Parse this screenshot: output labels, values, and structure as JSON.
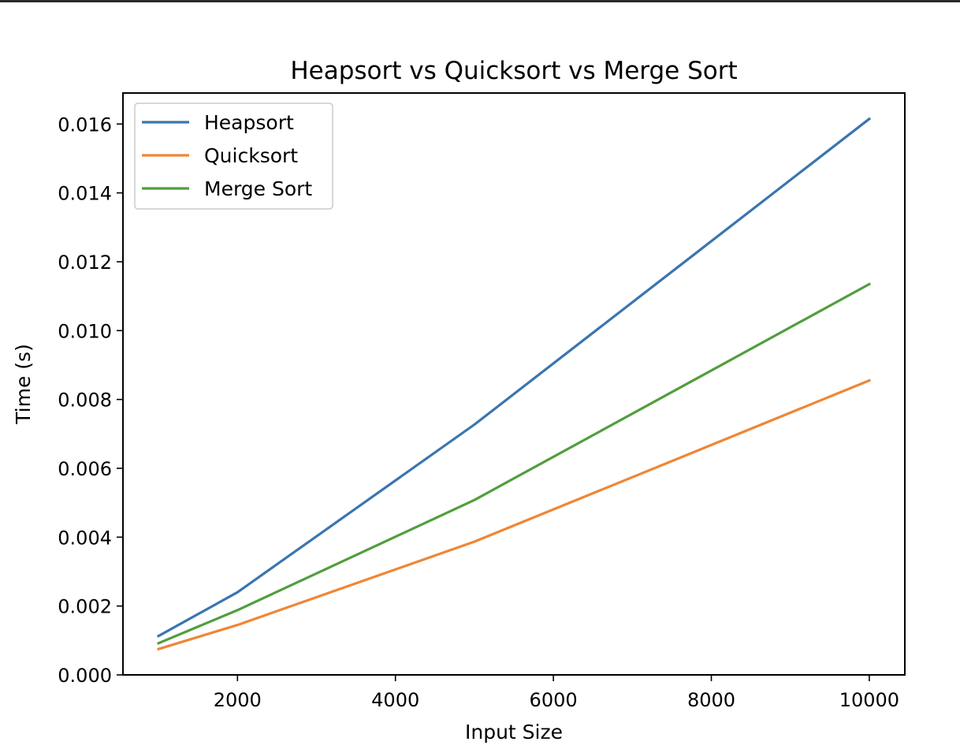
{
  "chart_data": {
    "type": "line",
    "title": "Heapsort vs Quicksort vs Merge Sort",
    "xlabel": "Input Size",
    "ylabel": "Time (s)",
    "x": [
      1000,
      2000,
      5000,
      10000
    ],
    "xlim": [
      550,
      10450
    ],
    "ylim": [
      0,
      0.0169
    ],
    "xticks": [
      2000,
      4000,
      6000,
      8000,
      10000
    ],
    "xtick_labels": [
      "2000",
      "4000",
      "6000",
      "8000",
      "10000"
    ],
    "yticks": [
      0,
      0.002,
      0.004,
      0.006,
      0.008,
      0.01,
      0.012,
      0.014,
      0.016
    ],
    "ytick_labels": [
      "0.000",
      "0.002",
      "0.004",
      "0.006",
      "0.008",
      "0.010",
      "0.012",
      "0.014",
      "0.016"
    ],
    "grid": false,
    "legend": "top-left",
    "series": [
      {
        "name": "Heapsort",
        "color": "#3a75af",
        "values": [
          0.00113,
          0.0024,
          0.00727,
          0.01615
        ]
      },
      {
        "name": "Quicksort",
        "color": "#ef8636",
        "values": [
          0.00075,
          0.00145,
          0.00387,
          0.00855
        ]
      },
      {
        "name": "Merge Sort",
        "color": "#519e3e",
        "values": [
          0.00092,
          0.00188,
          0.00508,
          0.01135
        ]
      }
    ]
  }
}
